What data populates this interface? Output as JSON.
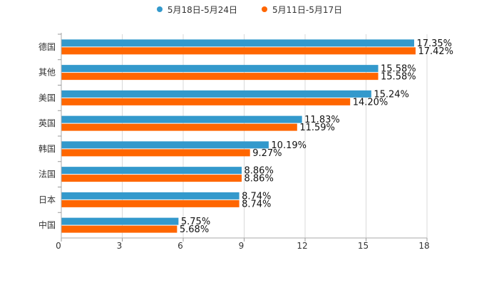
{
  "chart_data": {
    "type": "bar",
    "orientation": "horizontal",
    "categories": [
      "德国",
      "其他",
      "美国",
      "英国",
      "韩国",
      "法国",
      "日本",
      "中国"
    ],
    "series": [
      {
        "name": "5月18日-5月24日",
        "color": "#3399cc",
        "values": [
          17.35,
          15.58,
          15.24,
          11.83,
          10.19,
          8.86,
          8.74,
          5.75
        ],
        "labels": [
          "17.35%",
          "15.58%",
          "15.24%",
          "11.83%",
          "10.19%",
          "8.86%",
          "8.74%",
          "5.75%"
        ]
      },
      {
        "name": "5月11日-5月17日",
        "color": "#ff6600",
        "values": [
          17.42,
          15.58,
          14.2,
          11.59,
          9.27,
          8.86,
          8.74,
          5.68
        ],
        "labels": [
          "17.42%",
          "15.58%",
          "14.20%",
          "11.59%",
          "9.27%",
          "8.86%",
          "8.74%",
          "5.68%"
        ]
      }
    ],
    "xlim": [
      0,
      18
    ],
    "xticks": [
      0,
      3,
      6,
      9,
      12,
      15,
      18
    ],
    "xtick_labels": [
      "0",
      "3",
      "6",
      "9",
      "12",
      "15",
      "18"
    ],
    "title": "",
    "xlabel": "",
    "ylabel": "",
    "grid": true,
    "legend_position": "top-center"
  }
}
